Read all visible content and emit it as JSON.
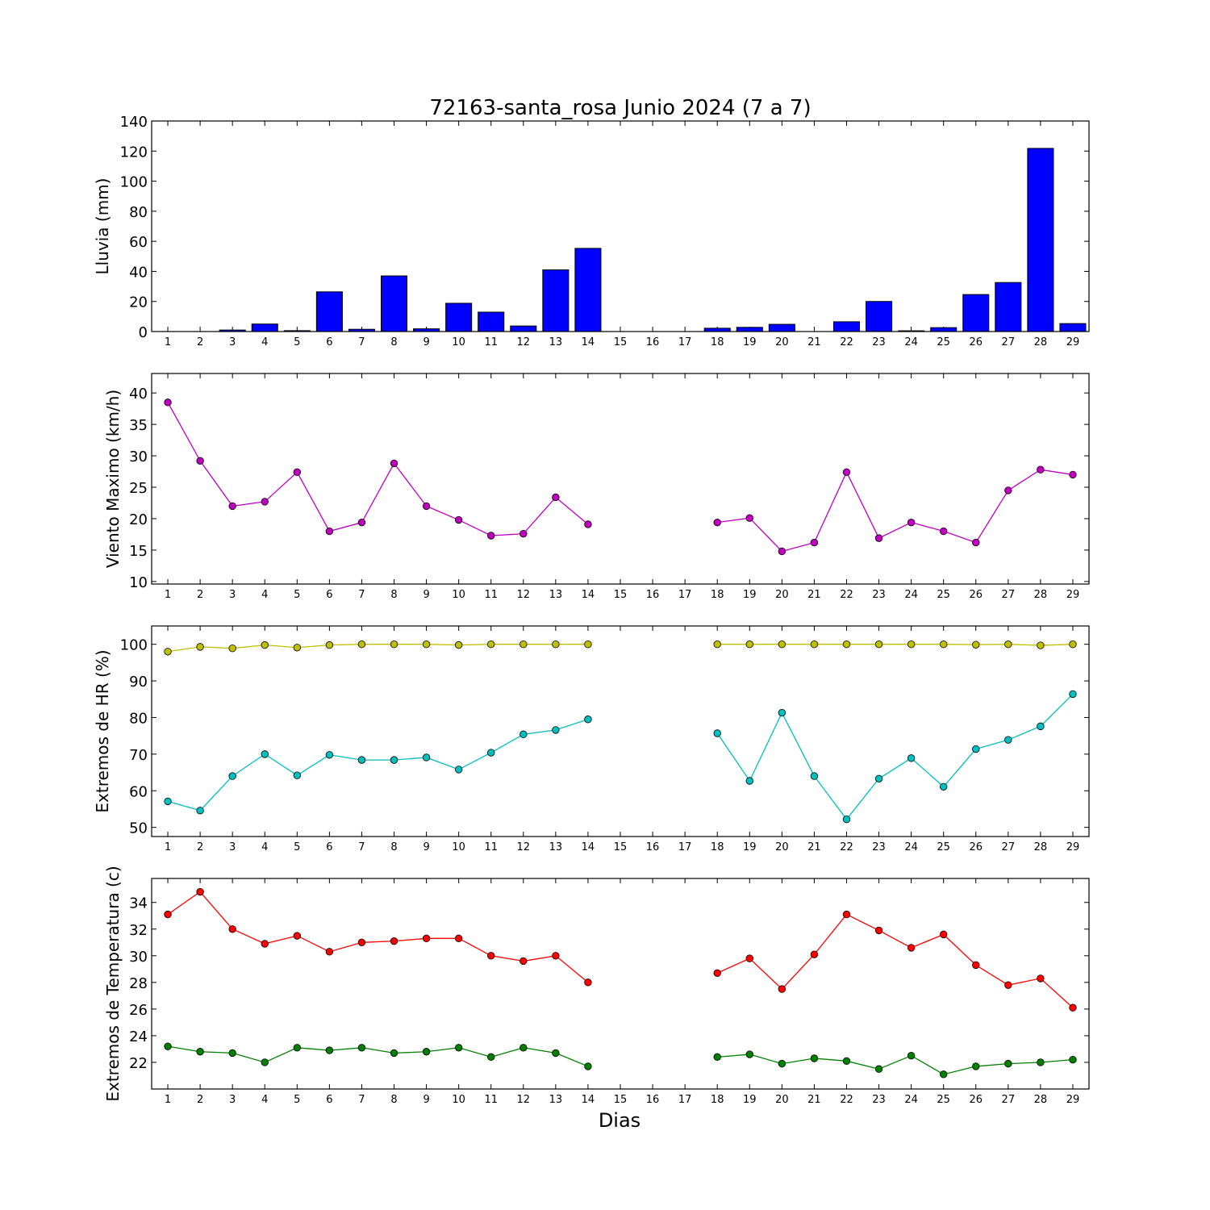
{
  "title": "72163-santa_rosa Junio 2024  (7 a 7)",
  "xlabel": "Dias",
  "chart_data": [
    {
      "type": "bar",
      "ylabel": "Lluvia (mm)",
      "ylim": [
        0,
        140
      ],
      "yticks": [
        0,
        20,
        40,
        60,
        80,
        100,
        120,
        140
      ],
      "xlim": [
        0.5,
        29.5
      ],
      "categories": [
        "1",
        "2",
        "3",
        "4",
        "5",
        "6",
        "7",
        "8",
        "9",
        "10",
        "11",
        "12",
        "13",
        "14",
        "15",
        "16",
        "17",
        "18",
        "19",
        "20",
        "21",
        "22",
        "23",
        "24",
        "25",
        "26",
        "27",
        "28",
        "29"
      ],
      "color": "#0000ff",
      "values": [
        0,
        0,
        1,
        5,
        0.6,
        26.4,
        1.5,
        37,
        1.8,
        18.8,
        12.9,
        3.7,
        41,
        55.3,
        0,
        0,
        0,
        2.2,
        2.8,
        4.8,
        0,
        6.5,
        20,
        0.5,
        2.6,
        24.6,
        32.6,
        121.8,
        5.3
      ]
    },
    {
      "type": "line",
      "ylabel": "Viento Maximo (km/h)",
      "ylim": [
        9.6,
        43.1
      ],
      "yticks": [
        10,
        15,
        20,
        25,
        30,
        35,
        40
      ],
      "xlim": [
        0.5,
        29.5
      ],
      "x": [
        1,
        2,
        3,
        4,
        5,
        6,
        7,
        8,
        9,
        10,
        11,
        12,
        13,
        14,
        15,
        16,
        17,
        18,
        19,
        20,
        21,
        22,
        23,
        24,
        25,
        26,
        27,
        28,
        29
      ],
      "series": [
        {
          "color": "#bf00bf",
          "values": [
            38.5,
            29.2,
            22,
            22.7,
            27.4,
            18,
            19.4,
            28.8,
            22,
            19.8,
            17.3,
            17.6,
            23.4,
            19.1,
            null,
            null,
            null,
            19.4,
            20.1,
            14.8,
            16.2,
            27.4,
            16.9,
            19.4,
            18,
            16.2,
            24.5,
            27.8,
            27
          ]
        }
      ]
    },
    {
      "type": "line",
      "ylabel": "Extremos de HR (%)",
      "ylim": [
        47.5,
        105
      ],
      "yticks": [
        50,
        60,
        70,
        80,
        90,
        100
      ],
      "xlim": [
        0.5,
        29.5
      ],
      "x": [
        1,
        2,
        3,
        4,
        5,
        6,
        7,
        8,
        9,
        10,
        11,
        12,
        13,
        14,
        15,
        16,
        17,
        18,
        19,
        20,
        21,
        22,
        23,
        24,
        25,
        26,
        27,
        28,
        29
      ],
      "series": [
        {
          "color": "#bfbf00",
          "values": [
            98,
            99.3,
            98.9,
            99.8,
            99.1,
            99.8,
            100,
            100,
            100,
            99.8,
            100,
            100,
            100,
            100,
            null,
            null,
            null,
            100,
            100,
            100,
            100,
            100,
            100,
            100,
            100,
            99.9,
            100,
            99.7,
            100
          ]
        },
        {
          "color": "#00bfbf",
          "values": [
            57.1,
            54.6,
            64,
            70,
            64.2,
            69.8,
            68.4,
            68.4,
            69.1,
            65.8,
            70.4,
            75.4,
            76.6,
            79.5,
            null,
            null,
            null,
            75.7,
            62.7,
            81.3,
            64,
            52.2,
            63.3,
            68.9,
            61.1,
            71.4,
            73.9,
            77.6,
            86.4
          ]
        }
      ]
    },
    {
      "type": "line",
      "ylabel": "Extremos de Temperatura (c)",
      "ylim": [
        20,
        35.8
      ],
      "yticks": [
        22,
        24,
        26,
        28,
        30,
        32,
        34
      ],
      "xlim": [
        0.5,
        29.5
      ],
      "x": [
        1,
        2,
        3,
        4,
        5,
        6,
        7,
        8,
        9,
        10,
        11,
        12,
        13,
        14,
        15,
        16,
        17,
        18,
        19,
        20,
        21,
        22,
        23,
        24,
        25,
        26,
        27,
        28,
        29
      ],
      "series": [
        {
          "color": "#ff0000",
          "values": [
            33.1,
            34.8,
            32,
            30.9,
            31.5,
            30.3,
            31,
            31.1,
            31.3,
            31.3,
            30,
            29.6,
            30,
            28,
            null,
            null,
            null,
            28.7,
            29.8,
            27.5,
            30.1,
            33.1,
            31.9,
            30.6,
            31.6,
            29.3,
            27.8,
            28.3,
            26.1
          ]
        },
        {
          "color": "#008000",
          "values": [
            23.2,
            22.8,
            22.7,
            22,
            23.1,
            22.9,
            23.1,
            22.7,
            22.8,
            23.1,
            22.4,
            23.1,
            22.7,
            21.7,
            null,
            null,
            null,
            22.4,
            22.6,
            21.9,
            22.3,
            22.1,
            21.5,
            22.5,
            21.1,
            21.7,
            21.9,
            22,
            22.2
          ]
        }
      ]
    }
  ]
}
